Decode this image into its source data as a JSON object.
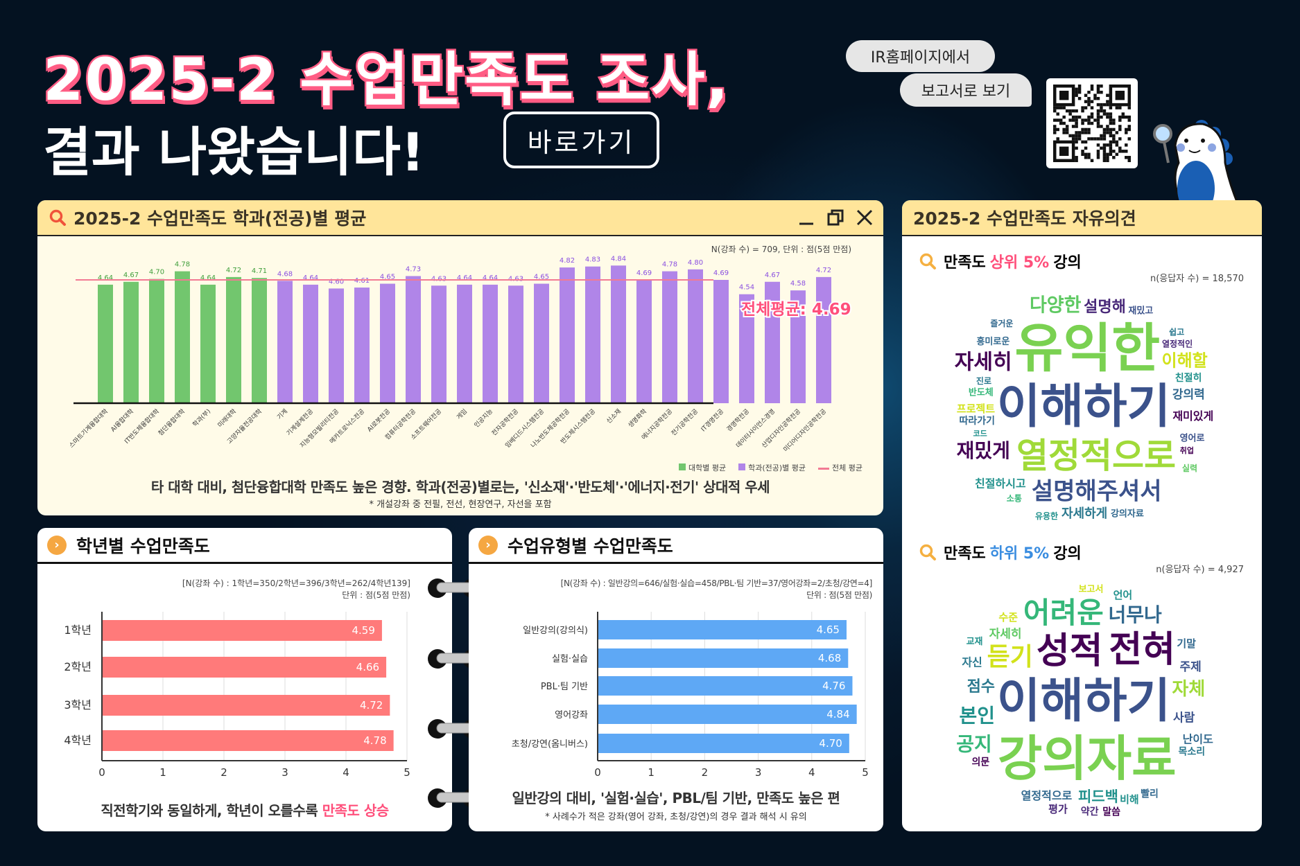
{
  "header": {
    "title_line1": "2025-2 수업만족도 조사,",
    "title_line2": "결과 나왔습니다!",
    "goto_button": "바로가기",
    "bubble1": "IR홈페이지에서",
    "bubble2": "보고서로 보기"
  },
  "main_panel": {
    "title": "2025-2 수업만족도 학과(전공)별 평균",
    "n_note": "N(강좌 수) = 709, 단위 : 점(5점 만점)",
    "avg_label": "전체평균: 4.69",
    "legend": [
      "대학별 평균",
      "학과(전공)별 평균",
      "전체 평균"
    ],
    "caption": "타 대학 대비, 첨단융합대학 만족도 높은 경향. 학과(전공)별로는, '신소재'·'반도체'·'에너지·전기' 상대적 우세",
    "footnote": "* 개설강좌 중 전필, 전선, 현장연구, 자선을 포함"
  },
  "grade_panel": {
    "title": "학년별 수업만족도",
    "n_note": "[N(강좌 수) : 1학년=350/2학년=396/3학년=262/4학년139]",
    "unit": "단위 : 점(5점 만점)",
    "caption_pre": "직전학기와 동일하게, 학년이 오를수록 ",
    "caption_hl": "만족도 상승"
  },
  "type_panel": {
    "title": "수업유형별 수업만족도",
    "n_note": "[N(강좌 수) : 일반강의=646/실험·실습=458/PBL·팀 기반=37/영어강좌=2/초청/강연=4]",
    "unit": "단위 : 점(5점 만점)",
    "caption": "일반강의 대비, '실험·실습', PBL/팀 기반, 만족도 높은 편",
    "footnote": "* 사례수가 적은 강좌(영어 강좌, 초청/강연)의 경우 결과 해석 시 유의"
  },
  "opinion_panel": {
    "title": "2025-2 수업만족도 자유의견",
    "top": {
      "pre": "만족도 ",
      "hl": "상위 5%",
      "post": " 강의",
      "n": "n(응답자 수) = 18,570",
      "words": [
        "이해하기",
        "유익한",
        "열정적으로",
        "설명해주셔서",
        "재밌게",
        "자세히",
        "다양한",
        "이해할",
        "설명해",
        "자세하게",
        "강의력",
        "재미있게",
        "친절하시고",
        "프로젝트",
        "따라가기",
        "반도체",
        "흥미로운",
        "친절히",
        "영어로",
        "열정적인",
        "강의자료",
        "진로",
        "코드",
        "취업",
        "재밌고",
        "소통",
        "즐거운",
        "쉽고",
        "실력",
        "유용한"
      ]
    },
    "bottom": {
      "pre": "만족도 ",
      "hl": "하위 5%",
      "post": " 강의",
      "n": "n(응답자 수) = 4,927",
      "words": [
        "이해하기",
        "강의자료",
        "성적",
        "전혀",
        "어려운",
        "듣기",
        "너무나",
        "본인",
        "자체",
        "피드백",
        "점수",
        "열정적으로",
        "사람",
        "자세히",
        "공지",
        "주제",
        "난이도",
        "비해",
        "자신",
        "수준",
        "기말",
        "평가",
        "목소리",
        "언어",
        "빨리",
        "약간",
        "의문",
        "말씀",
        "보고서",
        "교재"
      ]
    }
  },
  "chart_data": [
    {
      "type": "bar",
      "title": "2025-2 수업만족도 학과(전공)별 평균",
      "ylim": [
        3.4,
        5.0
      ],
      "average": 4.69,
      "categories": [
        "스마트기계융합대학",
        "AI융합대학",
        "IT반도체융합대학",
        "첨단융합대학",
        "학과(부)",
        "미래대학",
        "고양자율전공대학",
        "기계",
        "기계설계전공",
        "지능형모빌리티전공",
        "메카트로닉스전공",
        "AI로봇전공",
        "컴퓨터공학전공",
        "소프트웨어전공",
        "게임",
        "인공지능",
        "전자공학전공",
        "임베디드시스템전공",
        "나노반도체공학전공",
        "반도체시스템전공",
        "신소재",
        "생명화학",
        "에너지공학전공",
        "전기공학전공",
        "IT경영전공",
        "경영학전공",
        "데이터사이언스경영",
        "산업디자인공학전공",
        "미디어디자인공학전공"
      ],
      "values": [
        4.64,
        4.67,
        4.7,
        4.78,
        4.64,
        4.72,
        4.71,
        4.68,
        4.64,
        4.6,
        4.61,
        4.65,
        4.73,
        4.63,
        4.64,
        4.64,
        4.63,
        4.65,
        4.82,
        4.83,
        4.84,
        4.69,
        4.78,
        4.8,
        4.69,
        4.54,
        4.67,
        4.58,
        4.72
      ],
      "series_group": [
        "college",
        "college",
        "college",
        "college",
        "college",
        "college",
        "college",
        "major",
        "major",
        "major",
        "major",
        "major",
        "major",
        "major",
        "major",
        "major",
        "major",
        "major",
        "major",
        "major",
        "major",
        "major",
        "major",
        "major",
        "major",
        "major",
        "major",
        "major",
        "major"
      ],
      "colors": {
        "college": "#72c66e",
        "major": "#b085e8",
        "average": "#f27a93",
        "college_label": "#3f9e3a",
        "major_label": "#8a4fe0"
      }
    },
    {
      "type": "bar",
      "orientation": "horizontal",
      "title": "학년별 수업만족도",
      "categories": [
        "1학년",
        "2학년",
        "3학년",
        "4학년"
      ],
      "values": [
        4.59,
        4.66,
        4.72,
        4.78
      ],
      "xlim": [
        0,
        5
      ],
      "ticks": [
        0,
        1,
        2,
        3,
        4,
        5
      ],
      "color": "#ff7a7a"
    },
    {
      "type": "bar",
      "orientation": "horizontal",
      "title": "수업유형별 수업만족도",
      "categories": [
        "일반강의(강의식)",
        "실험·실습",
        "PBL·팀 기반",
        "영어강좌",
        "초청/강연(옴니버스)"
      ],
      "values": [
        4.65,
        4.68,
        4.76,
        4.84,
        4.7
      ],
      "xlim": [
        0,
        5
      ],
      "ticks": [
        0,
        1,
        2,
        3,
        4,
        5
      ],
      "color": "#5ea8f5"
    }
  ]
}
